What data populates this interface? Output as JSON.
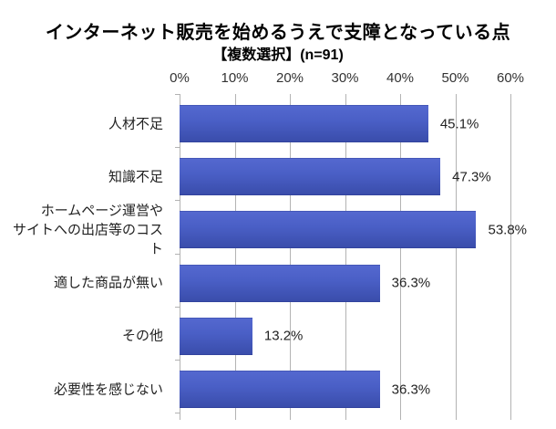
{
  "chart_data": {
    "type": "bar",
    "orientation": "horizontal",
    "title": "インターネット販売を始めるうえで支障となっている点",
    "subtitle": "【複数選択】(n=91)",
    "n": 91,
    "categories": [
      "人材不足",
      "知識不足",
      "ホームページ運営や\nサイトへの出店等のコスト",
      "適した商品が無い",
      "その他",
      "必要性を感じない"
    ],
    "values": [
      45.1,
      47.3,
      53.8,
      36.3,
      13.2,
      36.3
    ],
    "value_labels": [
      "45.1%",
      "47.3%",
      "53.8%",
      "36.3%",
      "13.2%",
      "36.3%"
    ],
    "xlabel": "",
    "ylabel": "",
    "x_axis": {
      "position": "top",
      "min": 0,
      "max": 60,
      "unit": "%",
      "tick_labels": [
        "0%",
        "10%",
        "20%",
        "30%",
        "40%",
        "50%",
        "60%"
      ]
    },
    "grid": true,
    "legend": false,
    "colors": {
      "bar_top": "#5468cf",
      "bar_mid": "#4a5fc6",
      "bar_bottom": "#3a4dab",
      "gridline": "#b3b3b3",
      "text": "#222222",
      "title_text": "#000000"
    }
  }
}
